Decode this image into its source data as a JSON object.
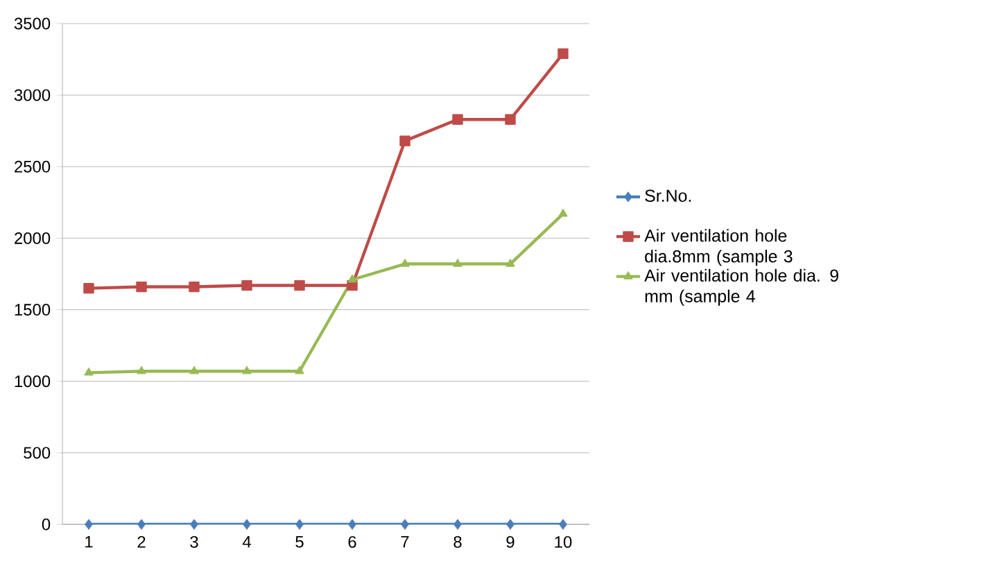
{
  "chart_data": {
    "type": "line",
    "categories": [
      "1",
      "2",
      "3",
      "4",
      "5",
      "6",
      "7",
      "8",
      "9",
      "10"
    ],
    "series": [
      {
        "name": "Sr.No.",
        "color": "#4a7ebb",
        "marker": "diamond",
        "values": [
          0,
          0,
          0,
          0,
          0,
          0,
          0,
          0,
          0,
          0
        ]
      },
      {
        "name": "Air ventilation hole dia.8mm (sample 3",
        "color": "#be4b48",
        "marker": "square",
        "values": [
          1650,
          1660,
          1660,
          1670,
          1670,
          1670,
          2680,
          2830,
          2830,
          3290
        ]
      },
      {
        "name": "Air ventilation hole dia. 9  mm (sample 4",
        "color": "#98b954",
        "marker": "triangle",
        "values": [
          1060,
          1070,
          1070,
          1070,
          1070,
          1710,
          1820,
          1820,
          1820,
          2170
        ]
      }
    ],
    "ylim": [
      0,
      3500
    ],
    "yticks": [
      0,
      500,
      1000,
      1500,
      2000,
      2500,
      3000,
      3500
    ],
    "grid": "y",
    "legend": "right"
  }
}
